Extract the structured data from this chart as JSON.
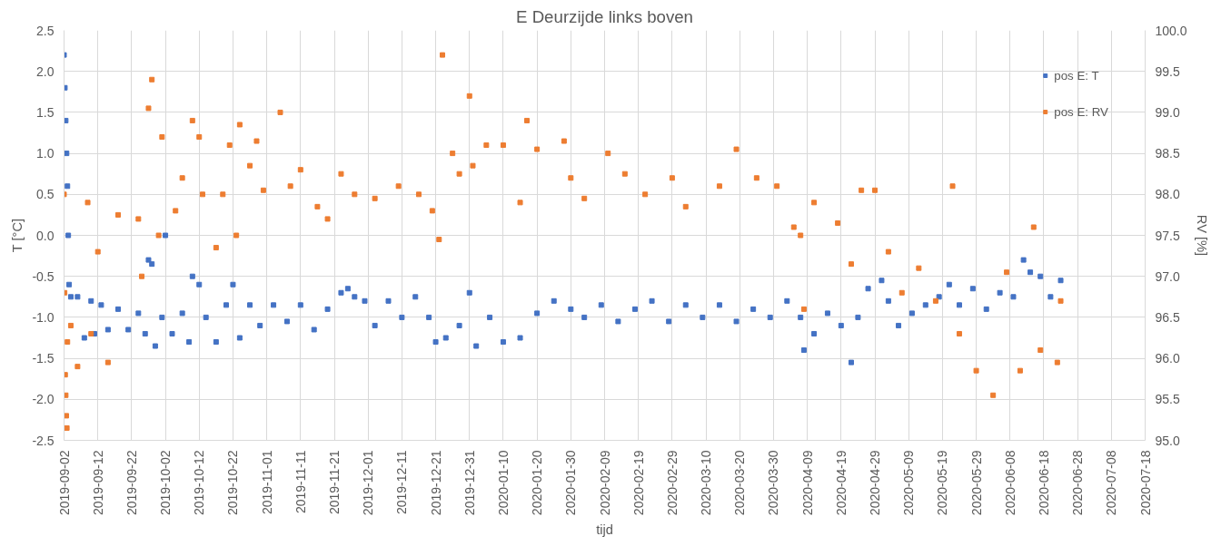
{
  "chart_data": {
    "type": "scatter",
    "title": "E Deurzijde links boven",
    "xlabel": "tijd",
    "ylabel": "T [°C]",
    "y2label": "RV [%]",
    "xlim": [
      "2019-09-02",
      "2020-07-18"
    ],
    "xticks": [
      "2019-09-02",
      "2019-09-12",
      "2019-09-22",
      "2019-10-02",
      "2019-10-12",
      "2019-10-22",
      "2019-11-01",
      "2019-11-11",
      "2019-11-21",
      "2019-12-01",
      "2019-12-11",
      "2019-12-21",
      "2019-12-31",
      "2020-01-10",
      "2020-01-20",
      "2020-01-30",
      "2020-02-09",
      "2020-02-19",
      "2020-02-29",
      "2020-03-10",
      "2020-03-20",
      "2020-03-30",
      "2020-04-09",
      "2020-04-19",
      "2020-04-29",
      "2020-05-09",
      "2020-05-19",
      "2020-05-29",
      "2020-06-08",
      "2020-06-18",
      "2020-06-28",
      "2020-07-08",
      "2020-07-18"
    ],
    "ylim": [
      -2.5,
      2.5
    ],
    "yticks": [
      {
        "value": -2.5,
        "label": "-2.5"
      },
      {
        "value": -2,
        "label": "-2.0"
      },
      {
        "value": -1.5,
        "label": "-1.5"
      },
      {
        "value": -1,
        "label": "-1.0"
      },
      {
        "value": -0.5,
        "label": "-0.5"
      },
      {
        "value": 0,
        "label": "0.0"
      },
      {
        "value": 0.5,
        "label": "0.5"
      },
      {
        "value": 1,
        "label": "1.0"
      },
      {
        "value": 1.5,
        "label": "1.5"
      },
      {
        "value": 2,
        "label": "2.0"
      },
      {
        "value": 2.5,
        "label": "2.5"
      }
    ],
    "y2lim": [
      95,
      100
    ],
    "y2ticks": [
      {
        "value": 95,
        "label": "95.0"
      },
      {
        "value": 95.5,
        "label": "95.5"
      },
      {
        "value": 96,
        "label": "96.0"
      },
      {
        "value": 96.5,
        "label": "96.5"
      },
      {
        "value": 97,
        "label": "97.0"
      },
      {
        "value": 97.5,
        "label": "97.5"
      },
      {
        "value": 98,
        "label": "98.0"
      },
      {
        "value": 98.5,
        "label": "98.5"
      },
      {
        "value": 99,
        "label": "99.0"
      },
      {
        "value": 99.5,
        "label": "99.5"
      },
      {
        "value": 100,
        "label": "100.0"
      }
    ],
    "grid": true,
    "legend": "top right",
    "marker": "square",
    "series": [
      {
        "name": "pos E: T",
        "color": "#4472c4",
        "x": [
          "2019-09-02",
          "2019-09-02T06:00",
          "2019-09-02T12:00",
          "2019-09-02T18:00",
          "2019-09-03",
          "2019-09-03T06:00",
          "2019-09-03T12:00",
          "2019-09-04",
          "2019-09-06",
          "2019-09-08",
          "2019-09-10",
          "2019-09-11",
          "2019-09-13",
          "2019-09-15",
          "2019-09-18",
          "2019-09-21",
          "2019-09-24",
          "2019-09-26",
          "2019-09-27",
          "2019-09-28",
          "2019-09-29",
          "2019-10-01",
          "2019-10-02",
          "2019-10-04",
          "2019-10-07",
          "2019-10-09",
          "2019-10-10",
          "2019-10-12",
          "2019-10-14",
          "2019-10-17",
          "2019-10-20",
          "2019-10-22",
          "2019-10-24",
          "2019-10-27",
          "2019-10-30",
          "2019-11-03",
          "2019-11-07",
          "2019-11-11",
          "2019-11-15",
          "2019-11-19",
          "2019-11-23",
          "2019-11-25",
          "2019-11-27",
          "2019-11-30",
          "2019-12-03",
          "2019-12-07",
          "2019-12-11",
          "2019-12-15",
          "2019-12-19",
          "2019-12-21",
          "2019-12-24",
          "2019-12-28",
          "2019-12-31",
          "2020-01-02",
          "2020-01-06",
          "2020-01-10",
          "2020-01-15",
          "2020-01-20",
          "2020-01-25",
          "2020-01-30",
          "2020-02-03",
          "2020-02-08",
          "2020-02-13",
          "2020-02-18",
          "2020-02-23",
          "2020-02-28",
          "2020-03-04",
          "2020-03-09",
          "2020-03-14",
          "2020-03-19",
          "2020-03-24",
          "2020-03-29",
          "2020-04-03",
          "2020-04-07",
          "2020-04-08",
          "2020-04-11",
          "2020-04-15",
          "2020-04-19",
          "2020-04-22",
          "2020-04-24",
          "2020-04-27",
          "2020-05-01",
          "2020-05-03",
          "2020-05-06",
          "2020-05-10",
          "2020-05-14",
          "2020-05-18",
          "2020-05-21",
          "2020-05-24",
          "2020-05-28",
          "2020-06-01",
          "2020-06-05",
          "2020-06-09",
          "2020-06-12",
          "2020-06-14",
          "2020-06-17",
          "2020-06-20",
          "2020-06-23"
        ],
        "values": [
          2.2,
          1.8,
          1.4,
          1.0,
          0.6,
          0.0,
          -0.6,
          -0.75,
          -0.75,
          -1.25,
          -0.8,
          -1.2,
          -0.85,
          -1.15,
          -0.9,
          -1.15,
          -0.95,
          -1.2,
          -0.3,
          -0.35,
          -1.35,
          -1.0,
          0.0,
          -1.2,
          -0.95,
          -1.3,
          -0.5,
          -0.6,
          -1.0,
          -1.3,
          -0.85,
          -0.6,
          -1.25,
          -0.85,
          -1.1,
          -0.85,
          -1.05,
          -0.85,
          -1.15,
          -0.9,
          -0.7,
          -0.65,
          -0.75,
          -0.8,
          -1.1,
          -0.8,
          -1.0,
          -0.75,
          -1.0,
          -1.3,
          -1.25,
          -1.1,
          -0.7,
          -1.35,
          -1.0,
          -1.3,
          -1.25,
          -0.95,
          -0.8,
          -0.9,
          -1.0,
          -0.85,
          -1.05,
          -0.9,
          -0.8,
          -1.05,
          -0.85,
          -1.0,
          -0.85,
          -1.05,
          -0.9,
          -1.0,
          -0.8,
          -1.0,
          -1.4,
          -1.2,
          -0.95,
          -1.1,
          -1.55,
          -1.0,
          -0.65,
          -0.55,
          -0.8,
          -1.1,
          -0.95,
          -0.85,
          -0.75,
          -0.6,
          -0.85,
          -0.65,
          -0.9,
          -0.7,
          -0.75,
          -0.3,
          -0.45,
          -0.5,
          -0.75,
          -0.55
        ]
      },
      {
        "name": "pos E: RV",
        "color": "#ed7d31",
        "axis": "y2",
        "x": [
          "2019-09-02",
          "2019-09-02T04:00",
          "2019-09-02T08:00",
          "2019-09-02T12:00",
          "2019-09-02T16:00",
          "2019-09-02T20:00",
          "2019-09-03",
          "2019-09-04",
          "2019-09-06",
          "2019-09-09",
          "2019-09-10",
          "2019-09-12",
          "2019-09-15",
          "2019-09-18",
          "2019-09-24",
          "2019-09-25",
          "2019-09-27",
          "2019-09-28",
          "2019-09-30",
          "2019-10-01",
          "2019-10-05",
          "2019-10-07",
          "2019-10-10",
          "2019-10-12",
          "2019-10-13",
          "2019-10-17",
          "2019-10-19",
          "2019-10-21",
          "2019-10-23",
          "2019-10-24",
          "2019-10-27",
          "2019-10-29",
          "2019-10-31",
          "2019-11-05",
          "2019-11-08",
          "2019-11-11",
          "2019-11-16",
          "2019-11-19",
          "2019-11-23",
          "2019-11-27",
          "2019-12-03",
          "2019-12-10",
          "2019-12-16",
          "2019-12-20",
          "2019-12-22",
          "2019-12-23",
          "2019-12-26",
          "2019-12-28",
          "2019-12-31",
          "2020-01-01",
          "2020-01-05",
          "2020-01-10",
          "2020-01-15",
          "2020-01-17",
          "2020-01-20",
          "2020-01-28",
          "2020-01-30",
          "2020-02-03",
          "2020-02-10",
          "2020-02-15",
          "2020-02-21",
          "2020-02-29",
          "2020-03-04",
          "2020-03-14",
          "2020-03-19",
          "2020-03-25",
          "2020-03-31",
          "2020-04-05",
          "2020-04-07",
          "2020-04-08",
          "2020-04-11",
          "2020-04-18",
          "2020-04-22",
          "2020-04-25",
          "2020-04-29",
          "2020-05-03",
          "2020-05-07",
          "2020-05-12",
          "2020-05-17",
          "2020-05-22",
          "2020-05-24",
          "2020-05-29",
          "2020-06-03",
          "2020-06-07",
          "2020-06-11",
          "2020-06-15",
          "2020-06-17",
          "2020-06-22",
          "2020-06-23"
        ],
        "values": [
          98.0,
          96.8,
          95.8,
          95.55,
          95.3,
          95.15,
          96.2,
          96.4,
          95.9,
          97.9,
          96.3,
          97.3,
          95.95,
          97.75,
          97.7,
          97.0,
          99.05,
          99.4,
          97.5,
          98.7,
          97.8,
          98.2,
          98.9,
          98.7,
          98.0,
          97.35,
          98.0,
          98.6,
          97.5,
          98.85,
          98.35,
          98.65,
          98.05,
          99.0,
          98.1,
          98.3,
          97.85,
          97.7,
          98.25,
          98.0,
          97.95,
          98.1,
          98.0,
          97.8,
          97.45,
          99.7,
          98.5,
          98.25,
          99.2,
          98.35,
          98.6,
          98.6,
          97.9,
          98.9,
          98.55,
          98.65,
          98.2,
          97.95,
          98.5,
          98.25,
          98.0,
          98.2,
          97.85,
          98.1,
          98.55,
          98.2,
          98.1,
          97.6,
          97.5,
          96.6,
          97.9,
          97.65,
          97.15,
          98.05,
          98.05,
          97.3,
          96.8,
          97.1,
          96.7,
          98.1,
          96.3,
          95.85,
          95.55,
          97.05,
          95.85,
          97.6,
          96.1,
          95.95,
          96.7
        ]
      }
    ]
  }
}
